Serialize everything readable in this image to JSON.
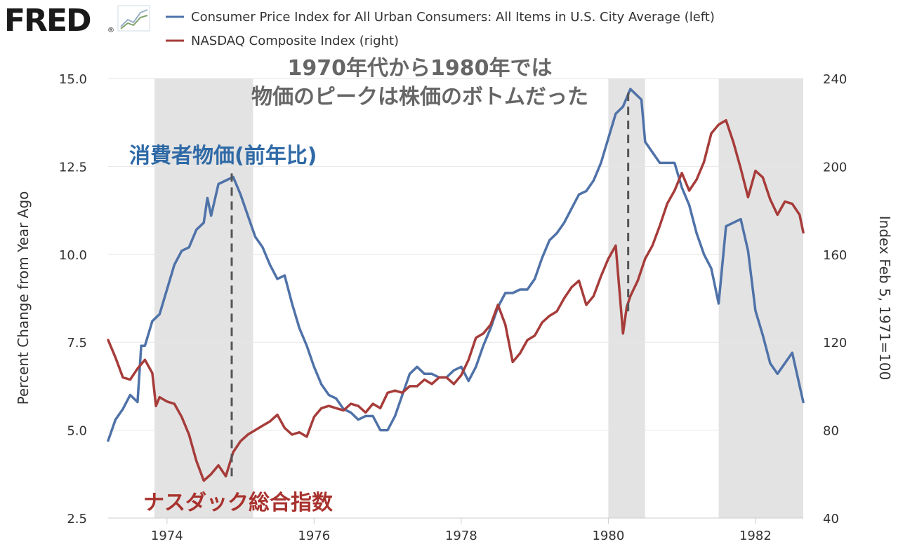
{
  "branding": {
    "logo_text": "FRED",
    "logo_mark": "®"
  },
  "colors": {
    "cpi": "#4f72a8",
    "nasdaq": "#a63c3a",
    "recession": "#e3e3e3",
    "grid": "#e6e6e6",
    "annotation_gray": "#666666",
    "annotation_blue": "#2f6aa6",
    "annotation_red": "#a8322d"
  },
  "icons": {
    "logo_chart": "line-chart-icon"
  },
  "chart_data": {
    "type": "line",
    "xlim": [
      1973.2,
      1982.65
    ],
    "x_ticks": [
      1974,
      1976,
      1978,
      1980,
      1982
    ],
    "x_tick_labels": [
      "1974",
      "1976",
      "1978",
      "1980",
      "1982"
    ],
    "left_axis": {
      "label": "Percent Change from Year Ago",
      "ylim": [
        2.5,
        15.0
      ],
      "ticks": [
        2.5,
        5.0,
        7.5,
        10.0,
        12.5,
        15.0
      ],
      "tick_labels": [
        "2.5",
        "5.0",
        "7.5",
        "10.0",
        "12.5",
        "15.0"
      ]
    },
    "right_axis": {
      "label": "Index Feb 5, 1971=100",
      "ylim": [
        40,
        240
      ],
      "ticks": [
        40,
        80,
        120,
        160,
        200,
        240
      ],
      "tick_labels": [
        "40",
        "80",
        "120",
        "160",
        "200",
        "240"
      ]
    },
    "grid": true,
    "legend_position": "top",
    "recessions": [
      [
        1973.83,
        1975.17
      ],
      [
        1980.0,
        1980.5
      ],
      [
        1981.5,
        1982.65
      ]
    ],
    "series": [
      {
        "name": "Consumer Price Index for All Urban Consumers: All Items in U.S. City Average (left)",
        "axis": "left",
        "color": "#4f72a8",
        "x": [
          1973.2,
          1973.3,
          1973.4,
          1973.5,
          1973.6,
          1973.65,
          1973.7,
          1973.8,
          1973.9,
          1974.0,
          1974.1,
          1974.2,
          1974.3,
          1974.4,
          1974.5,
          1974.55,
          1974.6,
          1974.7,
          1974.8,
          1974.9,
          1975.0,
          1975.1,
          1975.2,
          1975.3,
          1975.4,
          1975.5,
          1975.6,
          1975.7,
          1975.8,
          1975.9,
          1976.0,
          1976.1,
          1976.2,
          1976.3,
          1976.4,
          1976.5,
          1976.6,
          1976.7,
          1976.8,
          1976.9,
          1977.0,
          1977.1,
          1977.2,
          1977.3,
          1977.4,
          1977.5,
          1977.6,
          1977.7,
          1977.8,
          1977.9,
          1978.0,
          1978.1,
          1978.2,
          1978.3,
          1978.4,
          1978.5,
          1978.6,
          1978.7,
          1978.8,
          1978.9,
          1979.0,
          1979.1,
          1979.2,
          1979.3,
          1979.4,
          1979.5,
          1979.6,
          1979.7,
          1979.8,
          1979.9,
          1980.0,
          1980.1,
          1980.2,
          1980.3,
          1980.45,
          1980.5,
          1980.6,
          1980.7,
          1980.8,
          1980.9,
          1981.0,
          1981.1,
          1981.2,
          1981.3,
          1981.4,
          1981.5,
          1981.6,
          1981.7,
          1981.8,
          1981.9,
          1982.0,
          1982.1,
          1982.2,
          1982.3,
          1982.4,
          1982.5,
          1982.65
        ],
        "y": [
          4.7,
          5.3,
          5.6,
          6.0,
          5.8,
          7.4,
          7.4,
          8.1,
          8.3,
          9.0,
          9.7,
          10.1,
          10.2,
          10.7,
          10.9,
          11.6,
          11.1,
          12.0,
          12.1,
          12.2,
          11.7,
          11.1,
          10.5,
          10.2,
          9.7,
          9.3,
          9.4,
          8.6,
          7.9,
          7.4,
          6.8,
          6.3,
          6.0,
          5.9,
          5.6,
          5.5,
          5.3,
          5.4,
          5.4,
          5.0,
          5.0,
          5.4,
          6.0,
          6.6,
          6.8,
          6.6,
          6.6,
          6.5,
          6.5,
          6.7,
          6.8,
          6.4,
          6.8,
          7.4,
          7.9,
          8.5,
          8.9,
          8.9,
          9.0,
          9.0,
          9.3,
          9.9,
          10.4,
          10.6,
          10.9,
          11.3,
          11.7,
          11.8,
          12.1,
          12.6,
          13.3,
          14.0,
          14.2,
          14.7,
          14.4,
          13.2,
          12.9,
          12.6,
          12.6,
          12.6,
          11.9,
          11.4,
          10.6,
          10.0,
          9.6,
          8.6,
          10.8,
          10.9,
          11.0,
          10.1,
          8.4,
          7.7,
          6.9,
          6.6,
          6.9,
          7.2,
          5.8
        ]
      },
      {
        "name": "NASDAQ Composite Index (right)",
        "axis": "right",
        "color": "#a63c3a",
        "x": [
          1973.2,
          1973.3,
          1973.4,
          1973.5,
          1973.6,
          1973.7,
          1973.8,
          1973.85,
          1973.9,
          1974.0,
          1974.1,
          1974.2,
          1974.3,
          1974.4,
          1974.5,
          1974.6,
          1974.7,
          1974.8,
          1974.9,
          1975.0,
          1975.1,
          1975.2,
          1975.3,
          1975.4,
          1975.5,
          1975.6,
          1975.7,
          1975.8,
          1975.9,
          1976.0,
          1976.1,
          1976.2,
          1976.3,
          1976.4,
          1976.5,
          1976.6,
          1976.7,
          1976.8,
          1976.9,
          1977.0,
          1977.1,
          1977.2,
          1977.3,
          1977.4,
          1977.5,
          1977.6,
          1977.7,
          1977.8,
          1977.9,
          1978.0,
          1978.1,
          1978.2,
          1978.3,
          1978.4,
          1978.5,
          1978.6,
          1978.7,
          1978.8,
          1978.9,
          1979.0,
          1979.1,
          1979.2,
          1979.3,
          1979.4,
          1979.5,
          1979.6,
          1979.7,
          1979.8,
          1979.9,
          1980.0,
          1980.1,
          1980.2,
          1980.25,
          1980.3,
          1980.4,
          1980.5,
          1980.6,
          1980.7,
          1980.8,
          1980.9,
          1981.0,
          1981.1,
          1981.2,
          1981.3,
          1981.4,
          1981.5,
          1981.6,
          1981.7,
          1981.8,
          1981.9,
          1982.0,
          1982.1,
          1982.2,
          1982.3,
          1982.4,
          1982.5,
          1982.6,
          1982.65
        ],
        "y": [
          121,
          113,
          104,
          103,
          108,
          112,
          106,
          91,
          95,
          93,
          92,
          86,
          78,
          66,
          57,
          60,
          64,
          59,
          70,
          75,
          78,
          80,
          82,
          84,
          87,
          81,
          78,
          79,
          77,
          86,
          90,
          91,
          90,
          89,
          92,
          91,
          88,
          92,
          90,
          97,
          98,
          97,
          100,
          100,
          103,
          101,
          104,
          104,
          101,
          105,
          112,
          122,
          124,
          128,
          137,
          128,
          111,
          115,
          121,
          123,
          129,
          132,
          134,
          140,
          145,
          148,
          137,
          141,
          150,
          158,
          164,
          124,
          136,
          141,
          148,
          158,
          164,
          173,
          183,
          189,
          197,
          189,
          194,
          202,
          215,
          219,
          221,
          211,
          199,
          186,
          198,
          195,
          185,
          178,
          184,
          183,
          178,
          170
        ]
      }
    ],
    "markers": [
      {
        "x": 1974.88,
        "y_left": 12.3
      },
      {
        "x": 1980.27,
        "y_left": 14.6
      }
    ],
    "annotations": {
      "title_line1": "1970年代から1980年では",
      "title_line2": "物価のピークは株価のボトムだった",
      "cpi_label": "消費者物価(前年比)",
      "nasdaq_label": "ナスダック総合指数"
    }
  }
}
